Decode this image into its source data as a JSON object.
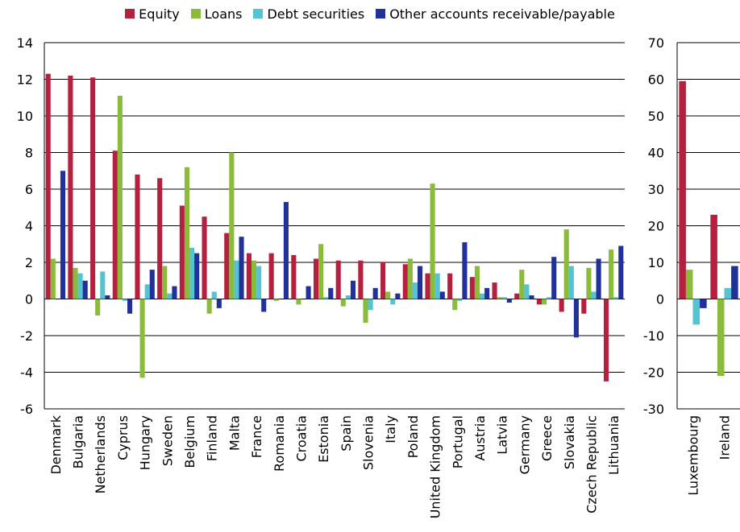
{
  "chart_data": [
    {
      "type": "bar",
      "categories": [
        "Denmark",
        "Bulgaria",
        "Netherlands",
        "Cyprus",
        "Hungary",
        "Sweden",
        "Belgium",
        "Finland",
        "Malta",
        "France",
        "Romania",
        "Croatia",
        "Estonia",
        "Spain",
        "Slovenia",
        "Italy",
        "Poland",
        "United Kingdom",
        "Portugal",
        "Austria",
        "Latvia",
        "Germany",
        "Greece",
        "Slovakia",
        "Czech Republic",
        "Lithuania"
      ],
      "series": [
        {
          "name": "Equity",
          "values": [
            12.3,
            12.2,
            12.1,
            8.1,
            6.8,
            6.6,
            5.1,
            4.5,
            3.6,
            2.5,
            2.5,
            2.4,
            2.2,
            2.1,
            2.1,
            2.0,
            1.9,
            1.4,
            1.4,
            1.2,
            0.9,
            0.3,
            -0.3,
            -0.7,
            -0.8,
            -4.5
          ]
        },
        {
          "name": "Loans",
          "values": [
            2.2,
            1.7,
            -0.9,
            11.1,
            -4.3,
            1.8,
            7.2,
            -0.8,
            8.0,
            2.1,
            -0.1,
            -0.3,
            3.0,
            -0.4,
            -1.3,
            0.4,
            2.2,
            6.3,
            -0.6,
            1.8,
            0.1,
            1.6,
            -0.3,
            3.8,
            1.7,
            2.7
          ]
        },
        {
          "name": "Debt securities",
          "values": [
            0.0,
            1.4,
            1.5,
            -0.1,
            0.8,
            0.3,
            2.8,
            0.4,
            2.1,
            1.8,
            0.0,
            0.0,
            0.1,
            0.2,
            -0.6,
            -0.3,
            0.9,
            1.4,
            -0.1,
            0.3,
            0.1,
            0.8,
            0.1,
            1.8,
            0.4,
            0.1
          ]
        },
        {
          "name": "Other accounts receivable/payable",
          "values": [
            7.0,
            1.0,
            0.2,
            -0.8,
            1.6,
            0.7,
            2.5,
            -0.5,
            3.4,
            -0.7,
            5.3,
            0.7,
            0.6,
            1.0,
            0.6,
            0.3,
            1.8,
            0.4,
            3.1,
            0.6,
            -0.2,
            0.2,
            2.3,
            -2.1,
            2.2,
            2.9
          ]
        }
      ],
      "ylim": [
        -6,
        14
      ],
      "yticks": [
        "14",
        "12",
        "10",
        "8",
        "6",
        "4",
        "2",
        "0",
        "-2",
        "-4",
        "-6"
      ],
      "grid": true,
      "legend": "top"
    },
    {
      "type": "bar",
      "categories": [
        "Luxembourg",
        "Ireland"
      ],
      "series": [
        {
          "name": "Equity",
          "values": [
            59.5,
            23.0
          ]
        },
        {
          "name": "Loans",
          "values": [
            8.0,
            -21.0
          ]
        },
        {
          "name": "Debt securities",
          "values": [
            -7.0,
            3.0
          ]
        },
        {
          "name": "Other accounts receivable/payable",
          "values": [
            -2.5,
            9.0
          ]
        }
      ],
      "ylim": [
        -30,
        70
      ],
      "yticks": [
        "70",
        "60",
        "50",
        "40",
        "30",
        "20",
        "10",
        "0",
        "-10",
        "-20",
        "-30"
      ],
      "grid": true
    }
  ],
  "legend": {
    "items": [
      {
        "label": "Equity",
        "color": "#b5203f"
      },
      {
        "label": "Loans",
        "color": "#8bbb3a"
      },
      {
        "label": "Debt securities",
        "color": "#55c3d2"
      },
      {
        "label": "Other accounts receivable/payable",
        "color": "#22309a"
      }
    ]
  },
  "colors": {
    "equity": "#b5203f",
    "loans": "#8bbb3a",
    "debt": "#55c3d2",
    "other": "#22309a"
  }
}
